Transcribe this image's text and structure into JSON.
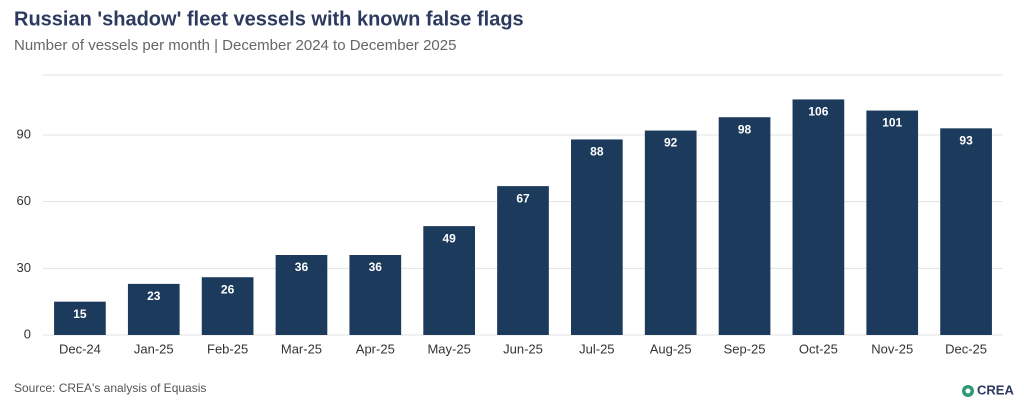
{
  "chart_data": {
    "type": "bar",
    "title": "Russian 'shadow' fleet vessels with known false flags",
    "subtitle": "Number of vessels per month | December 2024 to December 2025",
    "source": "Source: CREA's analysis of Equasis",
    "logo": "CREA",
    "categories": [
      "Dec-24",
      "Jan-25",
      "Feb-25",
      "Mar-25",
      "Apr-25",
      "May-25",
      "Jun-25",
      "Jul-25",
      "Aug-25",
      "Sep-25",
      "Oct-25",
      "Nov-25",
      "Dec-25"
    ],
    "values": [
      15,
      23,
      26,
      36,
      36,
      49,
      67,
      88,
      92,
      98,
      106,
      101,
      93
    ],
    "color": "#1b3a5c",
    "ylim": [
      0,
      117
    ],
    "yticks": [
      0,
      30,
      60,
      90
    ],
    "grid": true
  }
}
